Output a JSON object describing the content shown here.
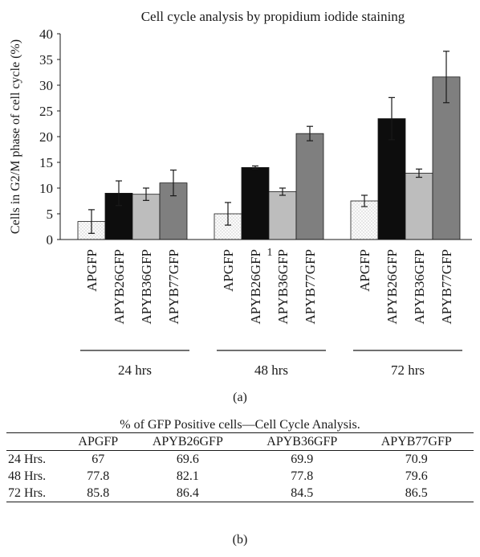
{
  "chart_data": {
    "type": "bar",
    "title": "Cell cycle analysis by propidium iodide staining",
    "ylabel": "Cells in G2/M phase of cell cycle (%)",
    "ylim": [
      0,
      40
    ],
    "yticks": [
      0,
      5,
      10,
      15,
      20,
      25,
      30,
      35,
      40
    ],
    "grid": false,
    "error_bars": true,
    "stray_label": "1",
    "groups": [
      {
        "label": "24 hrs",
        "bars": [
          {
            "name": "APGFP",
            "value": 3.5,
            "error": 2.3
          },
          {
            "name": "APYB26GFP",
            "value": 9.0,
            "error": 2.4
          },
          {
            "name": "APYB36GFP",
            "value": 8.8,
            "error": 1.2
          },
          {
            "name": "APYB77GFP",
            "value": 11.0,
            "error": 2.5
          }
        ]
      },
      {
        "label": "48 hrs",
        "bars": [
          {
            "name": "APGFP",
            "value": 5.0,
            "error": 2.2
          },
          {
            "name": "APYB26GFP",
            "value": 14.0,
            "error": 0.3
          },
          {
            "name": "APYB36GFP",
            "value": 9.3,
            "error": 0.7
          },
          {
            "name": "APYB77GFP",
            "value": 20.6,
            "error": 1.4
          }
        ]
      },
      {
        "label": "72 hrs",
        "bars": [
          {
            "name": "APGFP",
            "value": 7.5,
            "error": 1.1
          },
          {
            "name": "APYB26GFP",
            "value": 23.5,
            "error": 4.1
          },
          {
            "name": "APYB36GFP",
            "value": 12.9,
            "error": 0.8
          },
          {
            "name": "APYB77GFP",
            "value": 31.6,
            "error": 5.0
          }
        ]
      }
    ],
    "bar_colors": {
      "APGFP": "#f4f4f4",
      "APYB26GFP": "#0d0d0d",
      "APYB36GFP": "#bdbdbd",
      "APYB77GFP": "#7f7f7f"
    },
    "table": {
      "title": "% of GFP Positive cells—Cell Cycle Analysis.",
      "columns": [
        "",
        "APGFP",
        "APYB26GFP",
        "APYB36GFP",
        "APYB77GFP"
      ],
      "rows": [
        [
          "24 Hrs.",
          "67",
          "69.6",
          "69.9",
          "70.9"
        ],
        [
          "48 Hrs.",
          "77.8",
          "82.1",
          "77.8",
          "79.6"
        ],
        [
          "72 Hrs.",
          "85.8",
          "86.4",
          "84.5",
          "86.5"
        ]
      ]
    }
  },
  "panel_labels": {
    "a": "(a)",
    "b": "(b)"
  }
}
